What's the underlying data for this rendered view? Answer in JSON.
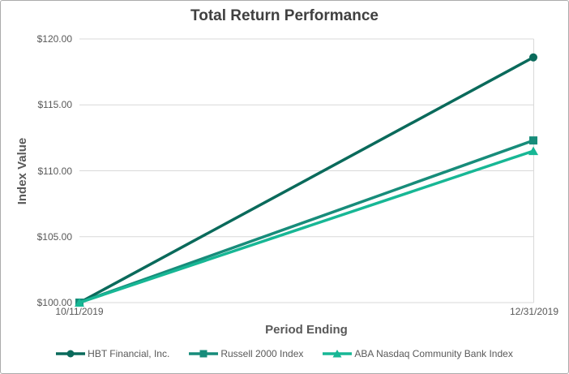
{
  "chart_data": {
    "type": "line",
    "title": "Total Return Performance",
    "xlabel": "Period Ending",
    "ylabel": "Index Value",
    "categories": [
      "10/11/2019",
      "12/31/2019"
    ],
    "series": [
      {
        "name": "HBT Financial, Inc.",
        "values": [
          100.0,
          118.6
        ],
        "color": "#0a6a5b",
        "marker": "circle"
      },
      {
        "name": "Russell 2000 Index",
        "values": [
          100.0,
          112.3
        ],
        "color": "#178c7a",
        "marker": "square"
      },
      {
        "name": "ABA Nasdaq Community Bank Index",
        "values": [
          100.0,
          111.5
        ],
        "color": "#17b795",
        "marker": "triangle"
      }
    ],
    "ylim": [
      100,
      120
    ],
    "y_ticks": [
      {
        "label": "$100.00",
        "value": 100
      },
      {
        "label": "$105.00",
        "value": 105
      },
      {
        "label": "$110.00",
        "value": 110
      },
      {
        "label": "$115.00",
        "value": 115
      },
      {
        "label": "$120.00",
        "value": 120
      }
    ],
    "grid": "horizontal",
    "legend_position": "bottom",
    "colors": {
      "grid": "#d9d9d9",
      "plot_border": "#d9d9d9",
      "title_text": "#404040",
      "axis_text": "#595959",
      "chart_border": "#ababab",
      "background": "#ffffff"
    }
  }
}
